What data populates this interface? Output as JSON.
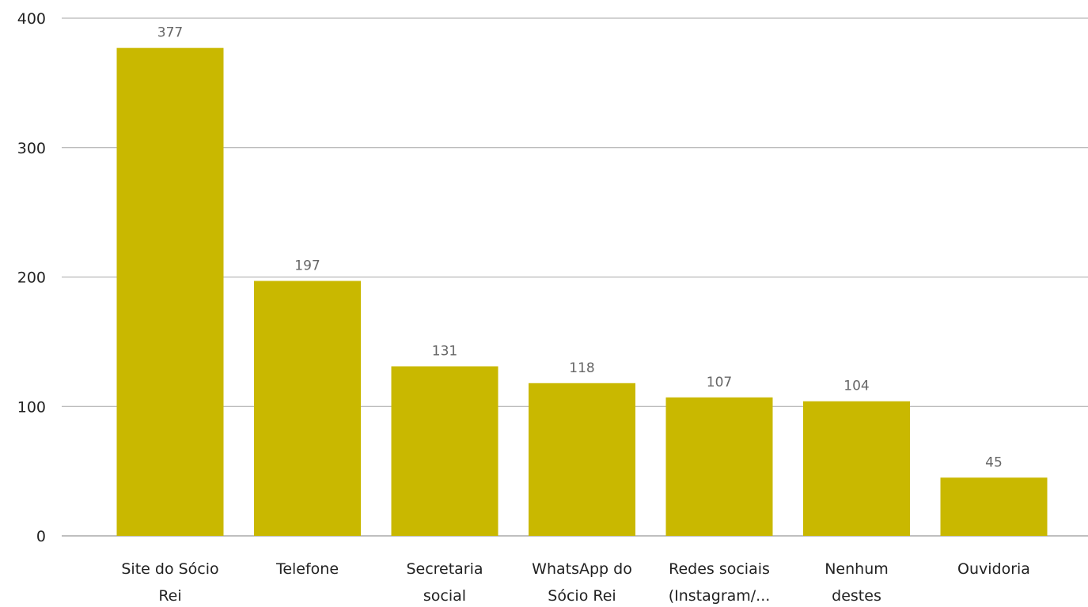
{
  "chart_data": {
    "type": "bar",
    "categories": [
      [
        "Site do Sócio",
        "Rei"
      ],
      [
        "Telefone"
      ],
      [
        "Secretaria",
        "social"
      ],
      [
        "WhatsApp do",
        "Sócio Rei"
      ],
      [
        "Redes sociais",
        "(Instagram/..."
      ],
      [
        "Nenhum",
        "destes"
      ],
      [
        "Ouvidoria"
      ]
    ],
    "values": [
      377,
      197,
      131,
      118,
      107,
      104,
      45
    ],
    "data_labels": [
      "377",
      "197",
      "131",
      "118",
      "107",
      "104",
      "45"
    ],
    "ylim": [
      0,
      400
    ],
    "yticks": [
      0,
      100,
      200,
      300,
      400
    ],
    "ytick_labels": [
      "0",
      "100",
      "200",
      "300",
      "400"
    ],
    "title": "",
    "xlabel": "",
    "ylabel": "",
    "grid": true,
    "bar_color": "#c9b800"
  }
}
